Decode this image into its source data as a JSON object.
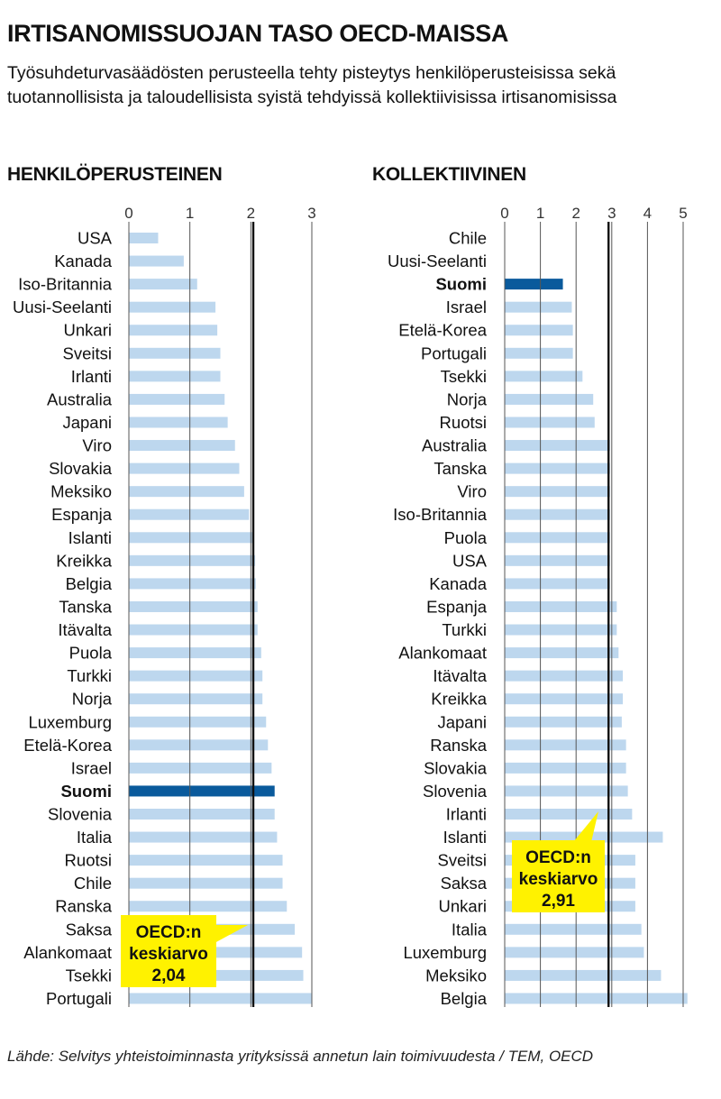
{
  "title": "IRTISANOMISSUOJAN TASO OECD-MAISSA",
  "subtitle": "Työsuhdeturvasäädösten perusteella tehty pisteytys henkilöperusteisissa sekä tuotannollisista ja taloudellisista syistä tehdyissä kollektiivisissa irtisanomisissa",
  "source": "Lähde: Selvitys yhteistoiminnasta yrityksissä annetun lain toimivuudesta / TEM, OECD",
  "colors": {
    "bar": "#bdd7ee",
    "highlight": "#0a5a9c",
    "callout": "#fff200",
    "mean_line": "#111111",
    "grid": "#555555"
  },
  "chart_data": [
    {
      "type": "bar",
      "orientation": "horizontal",
      "title": "HENKILÖPERUSTEINEN",
      "highlight": "Suomi",
      "xlim": [
        0,
        3
      ],
      "ticks": [
        0,
        1,
        2,
        3
      ],
      "grid": true,
      "mean_value": 2.04,
      "mean_label": [
        "OECD:n",
        "keskiarvo",
        "2,04"
      ],
      "categories": [
        "USA",
        "Kanada",
        "Iso-Britannia",
        "Uusi-Seelanti",
        "Unkari",
        "Sveitsi",
        "Irlanti",
        "Australia",
        "Japani",
        "Viro",
        "Slovakia",
        "Meksiko",
        "Espanja",
        "Islanti",
        "Kreikka",
        "Belgia",
        "Tanska",
        "Itävalta",
        "Puola",
        "Turkki",
        "Norja",
        "Luxemburg",
        "Etelä-Korea",
        "Israel",
        "Suomi",
        "Slovenia",
        "Italia",
        "Ruotsi",
        "Chile",
        "Ranska",
        "Saksa",
        "Alankomaat",
        "Tsekki",
        "Portugali"
      ],
      "values": [
        0.48,
        0.9,
        1.12,
        1.42,
        1.45,
        1.5,
        1.5,
        1.57,
        1.62,
        1.74,
        1.81,
        1.89,
        1.97,
        2.05,
        2.07,
        2.08,
        2.11,
        2.11,
        2.17,
        2.19,
        2.19,
        2.25,
        2.28,
        2.34,
        2.39,
        2.39,
        2.43,
        2.52,
        2.52,
        2.59,
        2.72,
        2.84,
        2.86,
        3.0
      ]
    },
    {
      "type": "bar",
      "orientation": "horizontal",
      "title": "KOLLEKTIIVINEN",
      "highlight": "Suomi",
      "xlim": [
        0,
        5
      ],
      "ticks": [
        0,
        1,
        2,
        3,
        4,
        5
      ],
      "grid": true,
      "mean_value": 2.91,
      "mean_label": [
        "OECD:n",
        "keskiarvo",
        "2,91"
      ],
      "categories": [
        "Chile",
        "Uusi-Seelanti",
        "Suomi",
        "Israel",
        "Etelä-Korea",
        "Portugali",
        "Tsekki",
        "Norja",
        "Ruotsi",
        "Australia",
        "Tanska",
        "Viro",
        "Iso-Britannia",
        "Puola",
        "USA",
        "Kanada",
        "Espanja",
        "Turkki",
        "Alankomaat",
        "Itävalta",
        "Kreikka",
        "Japani",
        "Ranska",
        "Slovakia",
        "Slovenia",
        "Irlanti",
        "Islanti",
        "Sveitsi",
        "Saksa",
        "Unkari",
        "Italia",
        "Luxemburg",
        "Meksiko",
        "Belgia"
      ],
      "values": [
        0,
        0,
        1.63,
        1.88,
        1.91,
        1.91,
        2.18,
        2.48,
        2.52,
        2.95,
        2.95,
        2.95,
        2.95,
        2.95,
        2.95,
        2.95,
        3.14,
        3.14,
        3.19,
        3.31,
        3.31,
        3.28,
        3.4,
        3.4,
        3.45,
        3.57,
        4.43,
        3.66,
        3.66,
        3.66,
        3.83,
        3.9,
        4.38,
        5.12
      ]
    }
  ]
}
